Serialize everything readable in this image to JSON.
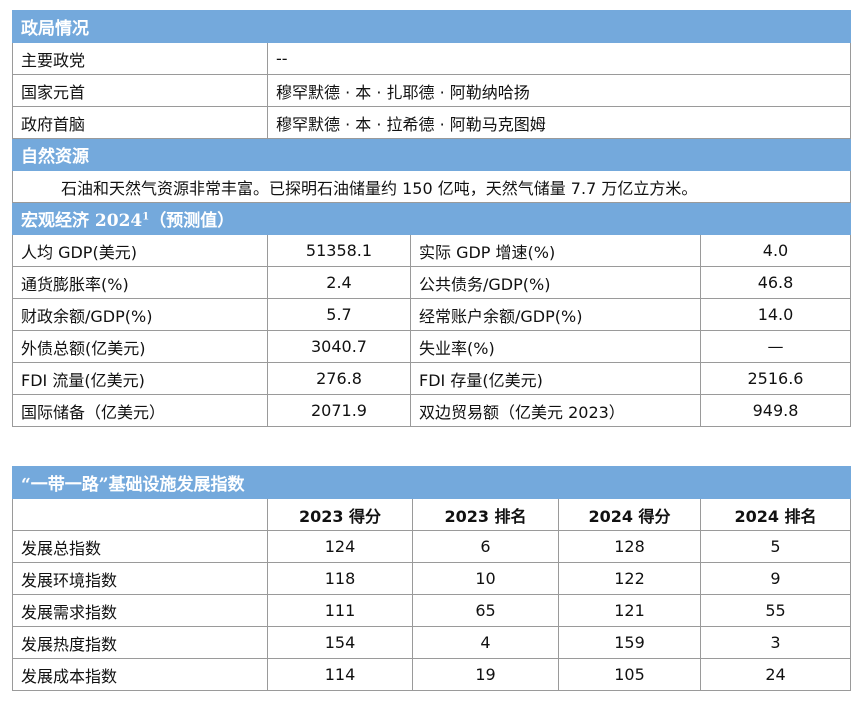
{
  "politics": {
    "title": "政局情况",
    "rows": [
      [
        "主要政党",
        "--"
      ],
      [
        "国家元首",
        "穆罕默德 · 本 · 扎耶德 · 阿勒纳哈扬"
      ],
      [
        "政府首脑",
        "穆罕默德 · 本 · 拉希德 · 阿勒马克图姆"
      ]
    ]
  },
  "resources": {
    "title": "自然资源",
    "text": "石油和天然气资源非常丰富。已探明石油储量约 150 亿吨，天然气储量 7.7 万亿立方米。"
  },
  "economy": {
    "title": "宏观经济 2024",
    "footnote_mark": "1",
    "title_suffix": "（预测值）",
    "rows": [
      [
        "人均 GDP(美元)",
        "51358.1",
        "实际 GDP 增速(%)",
        "4.0"
      ],
      [
        "通货膨胀率(%)",
        "2.4",
        "公共债务/GDP(%)",
        "46.8"
      ],
      [
        "财政余额/GDP(%)",
        "5.7",
        "经常账户余额/GDP(%)",
        "14.0"
      ],
      [
        "外债总额(亿美元)",
        "3040.7",
        "失业率(%)",
        "—"
      ],
      [
        "FDI 流量(亿美元)",
        "276.8",
        "FDI 存量(亿美元)",
        "2516.6"
      ],
      [
        "国际储备（亿美元）",
        "2071.9",
        "双边贸易额（亿美元 2023）",
        "949.8"
      ]
    ]
  },
  "index": {
    "title": "“一带一路”基础设施发展指数",
    "columns": [
      "2023 得分",
      "2023 排名",
      "2024 得分",
      "2024 排名"
    ],
    "rows": [
      [
        "发展总指数",
        "124",
        "6",
        "128",
        "5"
      ],
      [
        "发展环境指数",
        "118",
        "10",
        "122",
        "9"
      ],
      [
        "发展需求指数",
        "111",
        "65",
        "121",
        "55"
      ],
      [
        "发展热度指数",
        "154",
        "4",
        "159",
        "3"
      ],
      [
        "发展成本指数",
        "114",
        "19",
        "105",
        "24"
      ]
    ]
  }
}
